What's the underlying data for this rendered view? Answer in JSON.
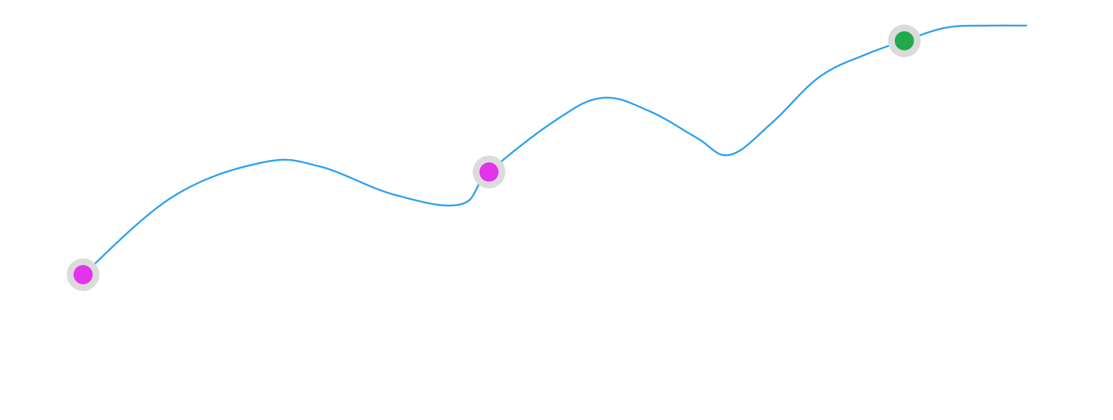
{
  "chart_data": {
    "type": "line",
    "title": "",
    "xlabel": "",
    "ylabel": "",
    "grid": false,
    "legend": "none",
    "xlim": [
      0,
      1
    ],
    "ylim": [
      0,
      1
    ],
    "series": [
      {
        "color": "#2aa1f0",
        "x": [
          0.0,
          0.095,
          0.19,
          0.25,
          0.33,
          0.4,
          0.43,
          0.5,
          0.55,
          0.6,
          0.65,
          0.685,
          0.73,
          0.78,
          0.83,
          0.87,
          0.915,
          0.96,
          1.0
        ],
        "y": [
          0.315,
          0.52,
          0.61,
          0.6,
          0.525,
          0.5,
          0.585,
          0.72,
          0.78,
          0.745,
          0.675,
          0.63,
          0.715,
          0.835,
          0.895,
          0.93,
          0.965,
          0.97,
          0.97
        ]
      }
    ],
    "markers": [
      {
        "x": 0.0,
        "y": 0.315,
        "color": "#e234ec",
        "ring_color": "#dcdbdc"
      },
      {
        "x": 0.43,
        "y": 0.585,
        "color": "#e234ec",
        "ring_color": "#dcdbdc"
      },
      {
        "x": 0.87,
        "y": 0.93,
        "color": "#22a94a",
        "ring_color": "#dcdbdc"
      }
    ]
  }
}
